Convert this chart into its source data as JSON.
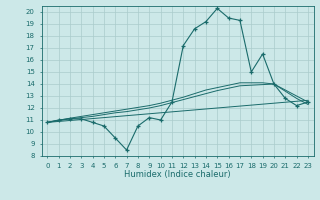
{
  "xlabel": "Humidex (Indice chaleur)",
  "xlim": [
    -0.5,
    23.5
  ],
  "ylim": [
    8,
    20.5
  ],
  "yticks": [
    8,
    9,
    10,
    11,
    12,
    13,
    14,
    15,
    16,
    17,
    18,
    19,
    20
  ],
  "xticks": [
    0,
    1,
    2,
    3,
    4,
    5,
    6,
    7,
    8,
    9,
    10,
    11,
    12,
    13,
    14,
    15,
    16,
    17,
    18,
    19,
    20,
    21,
    22,
    23
  ],
  "bg_color": "#cce8e8",
  "line_color": "#1a6b6b",
  "grid_color": "#aacccc",
  "main_line": [
    10.8,
    11.0,
    11.1,
    11.1,
    10.8,
    10.5,
    9.5,
    8.5,
    10.5,
    11.2,
    11.0,
    12.5,
    17.2,
    18.6,
    19.2,
    20.3,
    19.5,
    19.3,
    15.0,
    16.5,
    14.0,
    12.8,
    12.2,
    12.5
  ],
  "trend1": [
    10.8,
    10.88,
    10.96,
    11.04,
    11.12,
    11.2,
    11.28,
    11.36,
    11.44,
    11.52,
    11.6,
    11.68,
    11.76,
    11.84,
    11.92,
    12.0,
    12.08,
    12.16,
    12.24,
    12.32,
    12.4,
    12.48,
    12.56,
    12.64
  ],
  "trend2": [
    10.8,
    10.95,
    11.1,
    11.2,
    11.3,
    11.45,
    11.6,
    11.7,
    11.85,
    12.0,
    12.2,
    12.45,
    12.7,
    12.95,
    13.2,
    13.45,
    13.65,
    13.85,
    13.9,
    13.95,
    14.0,
    13.5,
    13.0,
    12.5
  ],
  "trend3": [
    10.8,
    10.98,
    11.15,
    11.3,
    11.45,
    11.6,
    11.75,
    11.9,
    12.05,
    12.2,
    12.4,
    12.65,
    12.9,
    13.2,
    13.5,
    13.7,
    13.9,
    14.1,
    14.1,
    14.1,
    14.0,
    13.4,
    12.8,
    12.3
  ]
}
